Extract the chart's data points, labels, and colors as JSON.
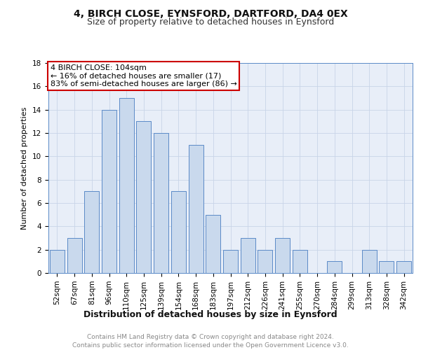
{
  "title1": "4, BIRCH CLOSE, EYNSFORD, DARTFORD, DA4 0EX",
  "title2": "Size of property relative to detached houses in Eynsford",
  "xlabel": "Distribution of detached houses by size in Eynsford",
  "ylabel": "Number of detached properties",
  "categories": [
    "52sqm",
    "67sqm",
    "81sqm",
    "96sqm",
    "110sqm",
    "125sqm",
    "139sqm",
    "154sqm",
    "168sqm",
    "183sqm",
    "197sqm",
    "212sqm",
    "226sqm",
    "241sqm",
    "255sqm",
    "270sqm",
    "284sqm",
    "299sqm",
    "313sqm",
    "328sqm",
    "342sqm"
  ],
  "values": [
    2,
    3,
    7,
    14,
    15,
    13,
    12,
    7,
    11,
    5,
    2,
    3,
    2,
    3,
    2,
    0,
    1,
    0,
    2,
    1,
    1
  ],
  "bar_color": "#c9d9ed",
  "bar_edge_color": "#5b8ac7",
  "highlight_index": 4,
  "annotation_text": "4 BIRCH CLOSE: 104sqm\n← 16% of detached houses are smaller (17)\n83% of semi-detached houses are larger (86) →",
  "annotation_box_color": "#ffffff",
  "annotation_box_edge_color": "#cc0000",
  "grid_color": "#c8d4e8",
  "background_color": "#e8eef8",
  "ylim": [
    0,
    18
  ],
  "yticks": [
    0,
    2,
    4,
    6,
    8,
    10,
    12,
    14,
    16,
    18
  ],
  "footer_text": "Contains HM Land Registry data © Crown copyright and database right 2024.\nContains public sector information licensed under the Open Government Licence v3.0.",
  "title1_fontsize": 10,
  "title2_fontsize": 9,
  "xlabel_fontsize": 9,
  "ylabel_fontsize": 8,
  "tick_fontsize": 7.5,
  "annotation_fontsize": 8,
  "footer_fontsize": 6.5
}
